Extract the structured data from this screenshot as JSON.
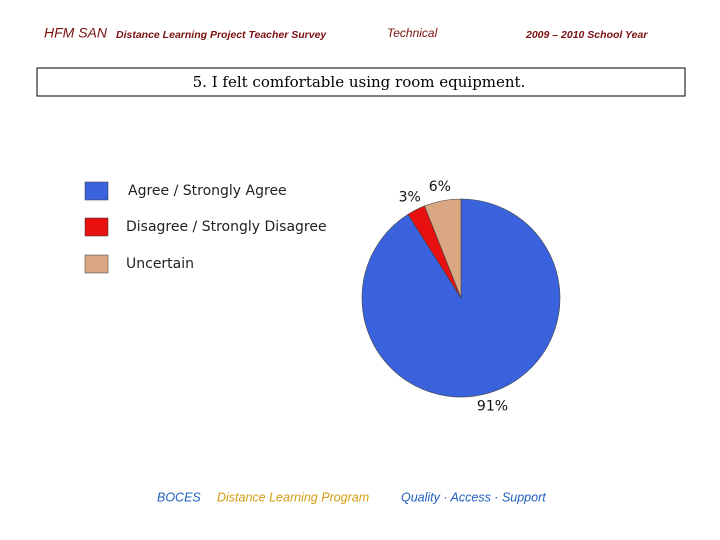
{
  "header": {
    "brand": "HFM SAN",
    "project": "Distance Learning Project  Teacher Survey",
    "section": "Technical",
    "year": "2009 – 2010 School Year"
  },
  "chart_data": {
    "type": "pie",
    "title": "5. I felt comfortable using room equipment.",
    "categories": [
      "Agree / Strongly Agree",
      "Disagree / Strongly Disagree",
      "Uncertain"
    ],
    "values": [
      91,
      3,
      6
    ],
    "value_labels": [
      "91%",
      "3%",
      "6%"
    ],
    "colors": [
      "#3a62dc",
      "#e81010",
      "#d9a882"
    ]
  },
  "footer": {
    "org": "BOCES",
    "program": "Distance Learning Program",
    "motto": "Quality · Access · Support"
  }
}
